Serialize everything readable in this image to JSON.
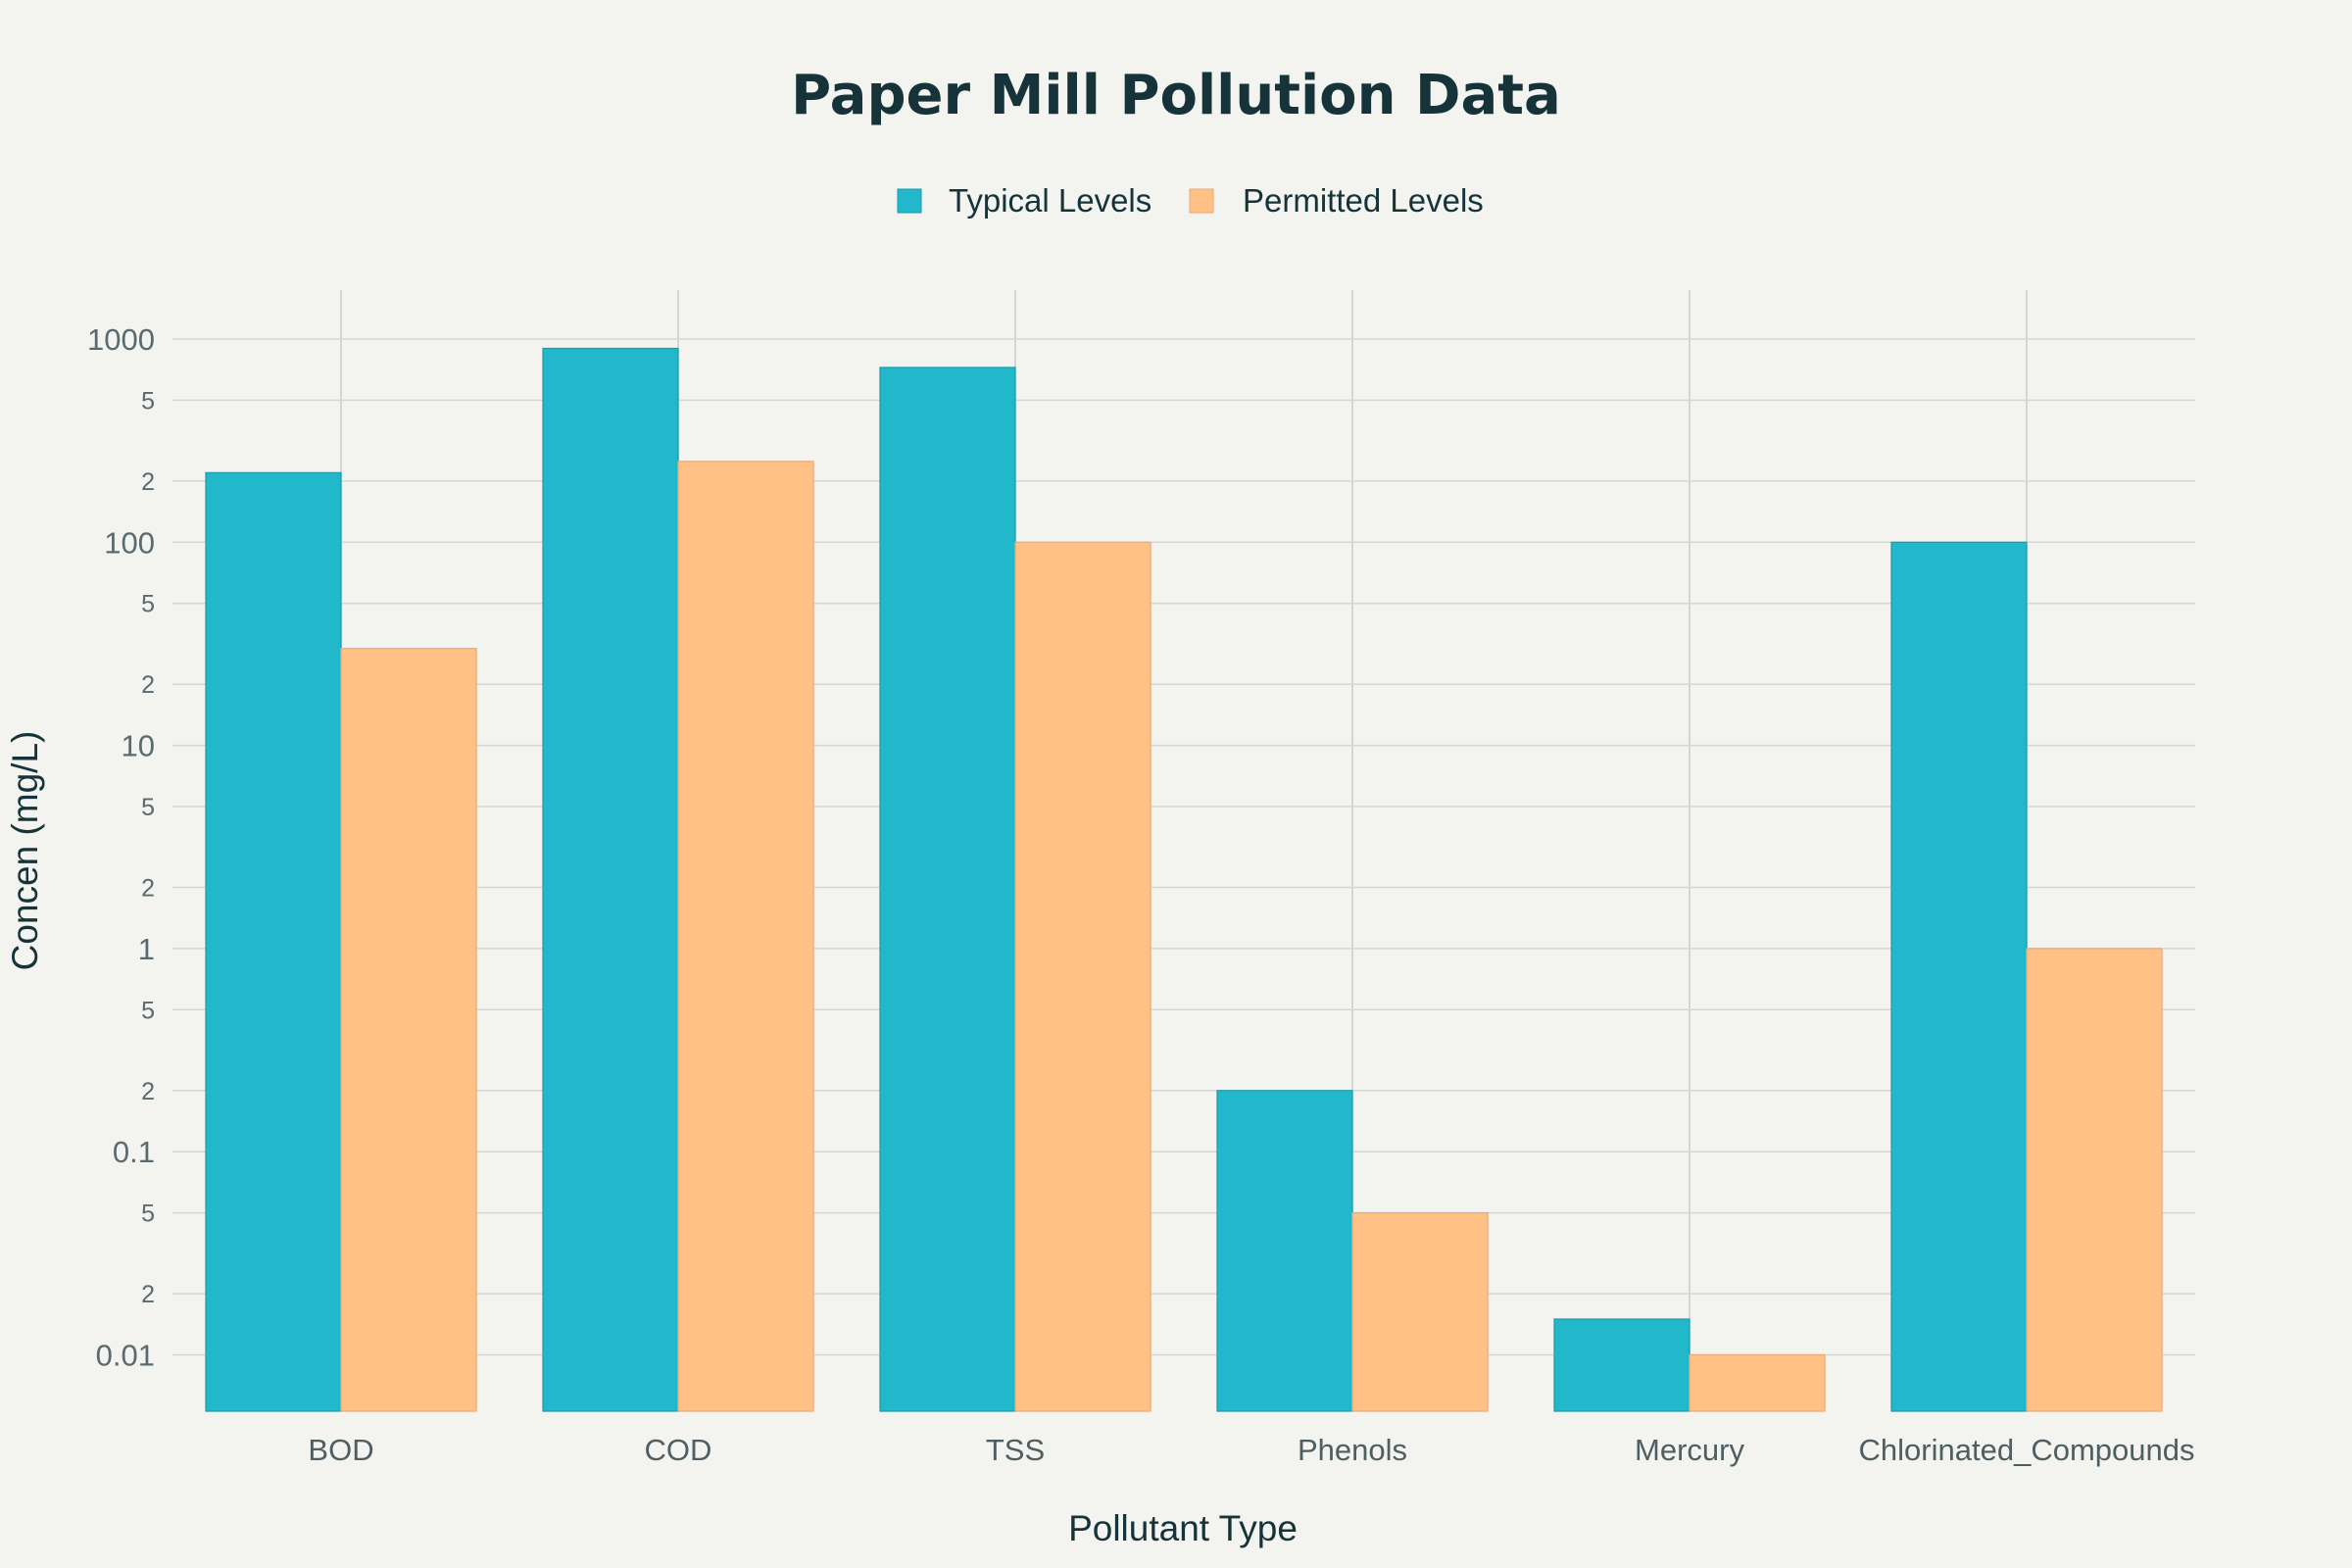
{
  "chart_data": {
    "type": "bar",
    "title": "Paper Mill Pollution Data",
    "xlabel": "Pollutant Type",
    "ylabel": "Concen (mg/L)",
    "y_scale": "log",
    "ylim": [
      0.0053,
      1500
    ],
    "grid": true,
    "legend_position": "top-center",
    "categories": [
      "BOD",
      "COD",
      "TSS",
      "Phenols",
      "Mercury",
      "Chlorinated_Compounds"
    ],
    "series": [
      {
        "name": "Typical Levels",
        "color": "#21b8cc",
        "values": [
          220,
          900,
          725,
          0.2,
          0.015,
          100
        ]
      },
      {
        "name": "Permitted Levels",
        "color": "#ffc185",
        "values": [
          30,
          250,
          100,
          0.05,
          0.01,
          1
        ]
      }
    ],
    "major_ticks": [
      {
        "value": 0.01,
        "label": "0.01"
      },
      {
        "value": 0.1,
        "label": "0.1"
      },
      {
        "value": 1,
        "label": "1"
      },
      {
        "value": 10,
        "label": "10"
      },
      {
        "value": 100,
        "label": "100"
      },
      {
        "value": 1000,
        "label": "1000"
      }
    ],
    "minor_ticks": [
      {
        "value": 0.02,
        "label": "2"
      },
      {
        "value": 0.05,
        "label": "5"
      },
      {
        "value": 0.2,
        "label": "2"
      },
      {
        "value": 0.5,
        "label": "5"
      },
      {
        "value": 2,
        "label": "2"
      },
      {
        "value": 5,
        "label": "5"
      },
      {
        "value": 20,
        "label": "2"
      },
      {
        "value": 50,
        "label": "5"
      },
      {
        "value": 200,
        "label": "2"
      },
      {
        "value": 500,
        "label": "5"
      }
    ]
  }
}
